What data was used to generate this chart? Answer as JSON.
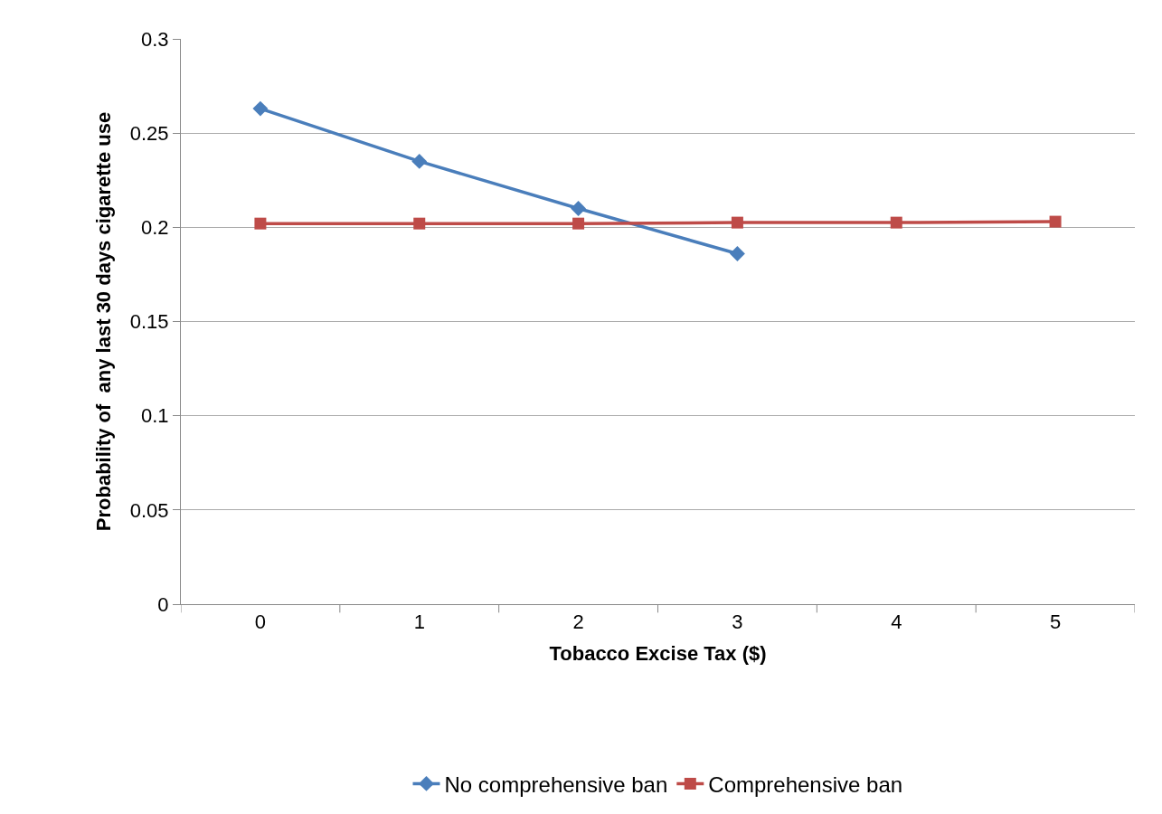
{
  "chart_data": {
    "type": "line",
    "xlabel": "Tobacco Excise Tax ($)",
    "ylabel": "Probability of  any last 30 days cigarette use",
    "categories": [
      "0",
      "1",
      "2",
      "3",
      "4",
      "5"
    ],
    "series": [
      {
        "name": "No comprehensive ban",
        "color": "#4a7ebb",
        "marker": "diamond",
        "values": [
          0.263,
          0.235,
          0.21,
          0.186,
          null,
          null
        ]
      },
      {
        "name": "Comprehensive ban",
        "color": "#be4b48",
        "marker": "square",
        "values": [
          0.202,
          0.202,
          0.202,
          0.2025,
          0.2025,
          0.203
        ]
      }
    ],
    "ylim": [
      0,
      0.3
    ],
    "yticks": [
      0,
      0.05,
      0.1,
      0.15,
      0.2,
      0.25,
      0.3
    ],
    "grid": "y",
    "legend": "bottom",
    "line_style": "solid"
  }
}
